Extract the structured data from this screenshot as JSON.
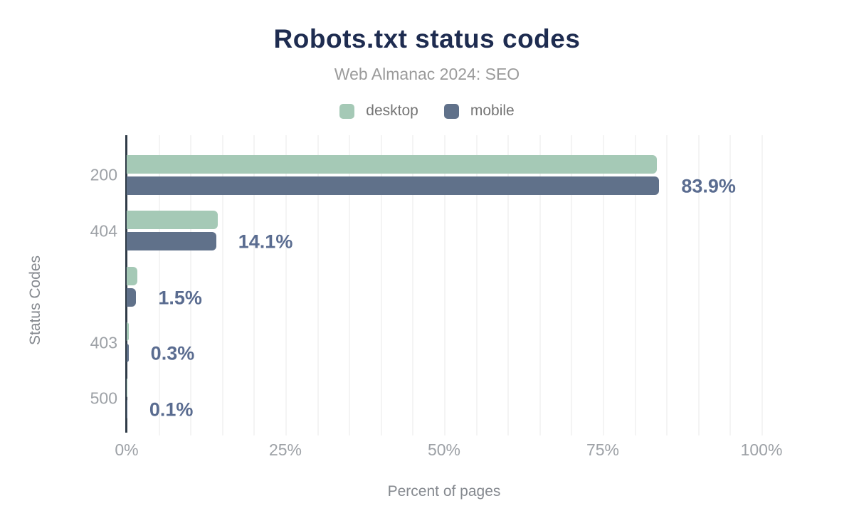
{
  "title": "Robots.txt status codes",
  "subtitle": "Web Almanac 2024: SEO",
  "legend": {
    "items": [
      {
        "label": "desktop",
        "color": "#a5c9b6"
      },
      {
        "label": "mobile",
        "color": "#60718a"
      }
    ]
  },
  "chart_data": {
    "type": "bar",
    "orientation": "horizontal",
    "title": "Robots.txt status codes",
    "subtitle": "Web Almanac 2024: SEO",
    "categories": [
      "200",
      "404",
      "",
      "403",
      "500"
    ],
    "series": [
      {
        "name": "desktop",
        "color": "#a5c9b6",
        "values": [
          83.5,
          14.4,
          1.7,
          0.3,
          0.1
        ]
      },
      {
        "name": "mobile",
        "color": "#60718a",
        "values": [
          83.9,
          14.1,
          1.5,
          0.3,
          0.1
        ]
      }
    ],
    "value_labels": [
      "83.9%",
      "14.1%",
      "1.5%",
      "0.3%",
      "0.1%"
    ],
    "value_labels_series": "mobile",
    "xlabel": "Percent of pages",
    "ylabel": "Status Codes",
    "xlim": [
      0,
      100
    ],
    "x_ticks": [
      {
        "label": "0%",
        "value": 0
      },
      {
        "label": "25%",
        "value": 25
      },
      {
        "label": "50%",
        "value": 50
      },
      {
        "label": "75%",
        "value": 75
      },
      {
        "label": "100%",
        "value": 100
      }
    ],
    "grid": "minor vertical gridlines every 5%",
    "legend_position": "top"
  },
  "colors": {
    "title": "#1e2c50",
    "subtitle": "#9b9b9b",
    "desktop_bar": "#a5c9b6",
    "mobile_bar": "#60718a",
    "value_label": "#5a6c90",
    "axis_line": "#2f3b47",
    "gridline": "#f4f4f4",
    "tick_label": "#9da1a6"
  }
}
